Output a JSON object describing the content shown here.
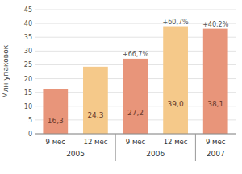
{
  "chart_data": {
    "type": "bar",
    "categories": [
      "9 мес",
      "12 мес",
      "9 мес",
      "12 мес",
      "9 мес"
    ],
    "values": [
      16.3,
      24.3,
      27.2,
      39.0,
      38.1
    ],
    "value_labels": [
      "16,3",
      "24,3",
      "27,2",
      "39,0",
      "38,1"
    ],
    "data_labels": true,
    "colors": [
      "#e8957a",
      "#f5c98a",
      "#e8957a",
      "#f5c98a",
      "#e8957a"
    ],
    "annotations": [
      null,
      null,
      "+66,7%",
      "+60,7%",
      "+40,2%"
    ],
    "groups": [
      {
        "label": "2005",
        "count": 2
      },
      {
        "label": "2006",
        "count": 2
      },
      {
        "label": "2007",
        "count": 1
      }
    ],
    "ylabel": "Млн упаковок",
    "ylim": [
      0,
      45
    ],
    "yticks": [
      0,
      5,
      10,
      15,
      20,
      25,
      30,
      35,
      40,
      45
    ],
    "grid": true
  }
}
